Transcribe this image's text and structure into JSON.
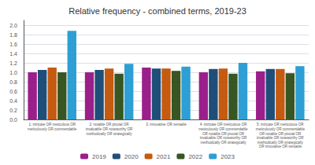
{
  "chart_data": {
    "type": "bar",
    "title": "Relative frequency - combined terms, 2019-23",
    "categories": [
      "1: intricate OR meticulous OR\nmeticulously OR commendable",
      "2: notable OR pivotal OR\ninvaluable OR noteworthy OR\nmethodically OR strategically",
      "3: innovative OR versatile",
      "4: intricate OR meticulous OR\nmeticulously OR commendable\nOR notable OR pivotal OR\ninvaluable OR noteworthy OR\nmethodically OR strategically",
      "5: intricate OR meticulous OR\nmeticulously OR commendable\nOR notable OR pivotal OR\ninvaluable OR noteworthy OR\nmethodically OR strategically\nOR innovative OR versatile"
    ],
    "series": [
      {
        "name": "2019",
        "color": "#9b1f8a",
        "values": [
          1.0,
          1.0,
          1.1,
          1.0,
          1.02
        ]
      },
      {
        "name": "2020",
        "color": "#1f4e79",
        "values": [
          1.05,
          1.05,
          1.08,
          1.07,
          1.07
        ]
      },
      {
        "name": "2021",
        "color": "#c55a11",
        "values": [
          1.1,
          1.08,
          1.08,
          1.08,
          1.07
        ]
      },
      {
        "name": "2022",
        "color": "#375623",
        "values": [
          1.0,
          0.97,
          1.03,
          0.97,
          0.98
        ]
      },
      {
        "name": "2023",
        "color": "#2e9fd4",
        "values": [
          1.88,
          1.18,
          1.12,
          1.2,
          1.13
        ]
      }
    ],
    "ylim": [
      0,
      2.1
    ],
    "yticks": [
      {
        "value": 0,
        "label": "0.0"
      },
      0.2,
      0.4,
      0.6,
      0.8,
      {
        "value": 1.0,
        "label": "1.0"
      },
      1.2,
      1.4,
      1.6,
      1.8,
      {
        "value": 2.0,
        "label": "2.0"
      }
    ],
    "grid": true,
    "legend": "bottom"
  }
}
